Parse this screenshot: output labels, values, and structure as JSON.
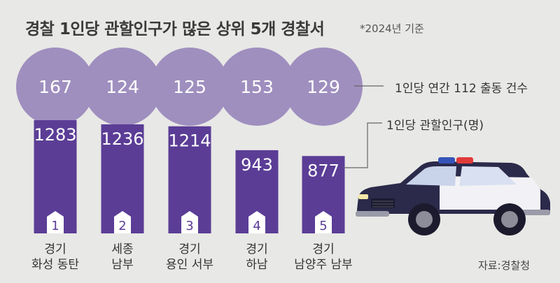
{
  "title": "경찰 1인당 관할인구가 많은 상위 5개 경찰서",
  "note": "*2024년 기준",
  "source": "자료:경찰청",
  "legend": {
    "circles": "1인당 연간 112 출동 건수",
    "bars": "1인당 관할인구(명)"
  },
  "colors": {
    "circle": "#9f8fbf",
    "bar": "#5b3d96",
    "background": "#e8e8e6"
  },
  "chart_data": {
    "type": "bar",
    "categories": [
      [
        "경기",
        "화성 동탄"
      ],
      [
        "세종",
        "남부"
      ],
      [
        "경기",
        "용인 서부"
      ],
      [
        "경기",
        "하남"
      ],
      [
        "경기",
        "남양주 남부"
      ]
    ],
    "ranks": [
      "1",
      "2",
      "3",
      "4",
      "5"
    ],
    "series": [
      {
        "name": "1인당 관할인구(명)",
        "values": [
          1283,
          1236,
          1214,
          943,
          877
        ]
      },
      {
        "name": "1인당 연간 112 출동 건수",
        "values": [
          167,
          124,
          125,
          153,
          129
        ]
      }
    ]
  }
}
